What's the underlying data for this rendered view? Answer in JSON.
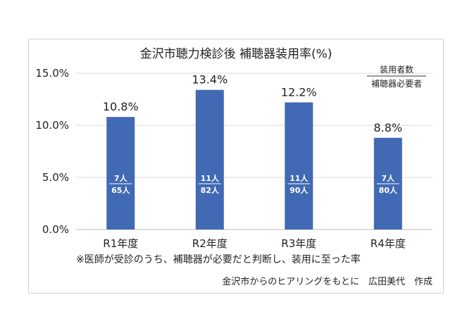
{
  "chart_data": {
    "type": "bar",
    "title": "金沢市聴力検診後 補聴器装用率(%)",
    "categories": [
      "R1年度",
      "R2年度",
      "R3年度",
      "R4年度"
    ],
    "values": [
      10.8,
      13.4,
      12.2,
      8.8
    ],
    "data_labels": [
      "10.8%",
      "13.4%",
      "12.2%",
      "8.8%"
    ],
    "numerators": [
      "7人",
      "11人",
      "11人",
      "7人"
    ],
    "denominators": [
      "65人",
      "82人",
      "90人",
      "80人"
    ],
    "ylim": [
      0,
      15
    ],
    "y_ticks": [
      0,
      5,
      10,
      15
    ],
    "y_tick_labels": [
      "0.0%",
      "5.0%",
      "10.0%",
      "15.0%"
    ],
    "bar_color": "#4169b4",
    "grid": true,
    "legend_numerator": "装用者数",
    "legend_denominator": "補聴器必要者",
    "legend_position": "top-right"
  },
  "footnote": "※医師が受診のうち、補聴器が必要だと判断し、装用に至った率",
  "credit": "金沢市からのヒアリングをもとに　広田美代　作成"
}
